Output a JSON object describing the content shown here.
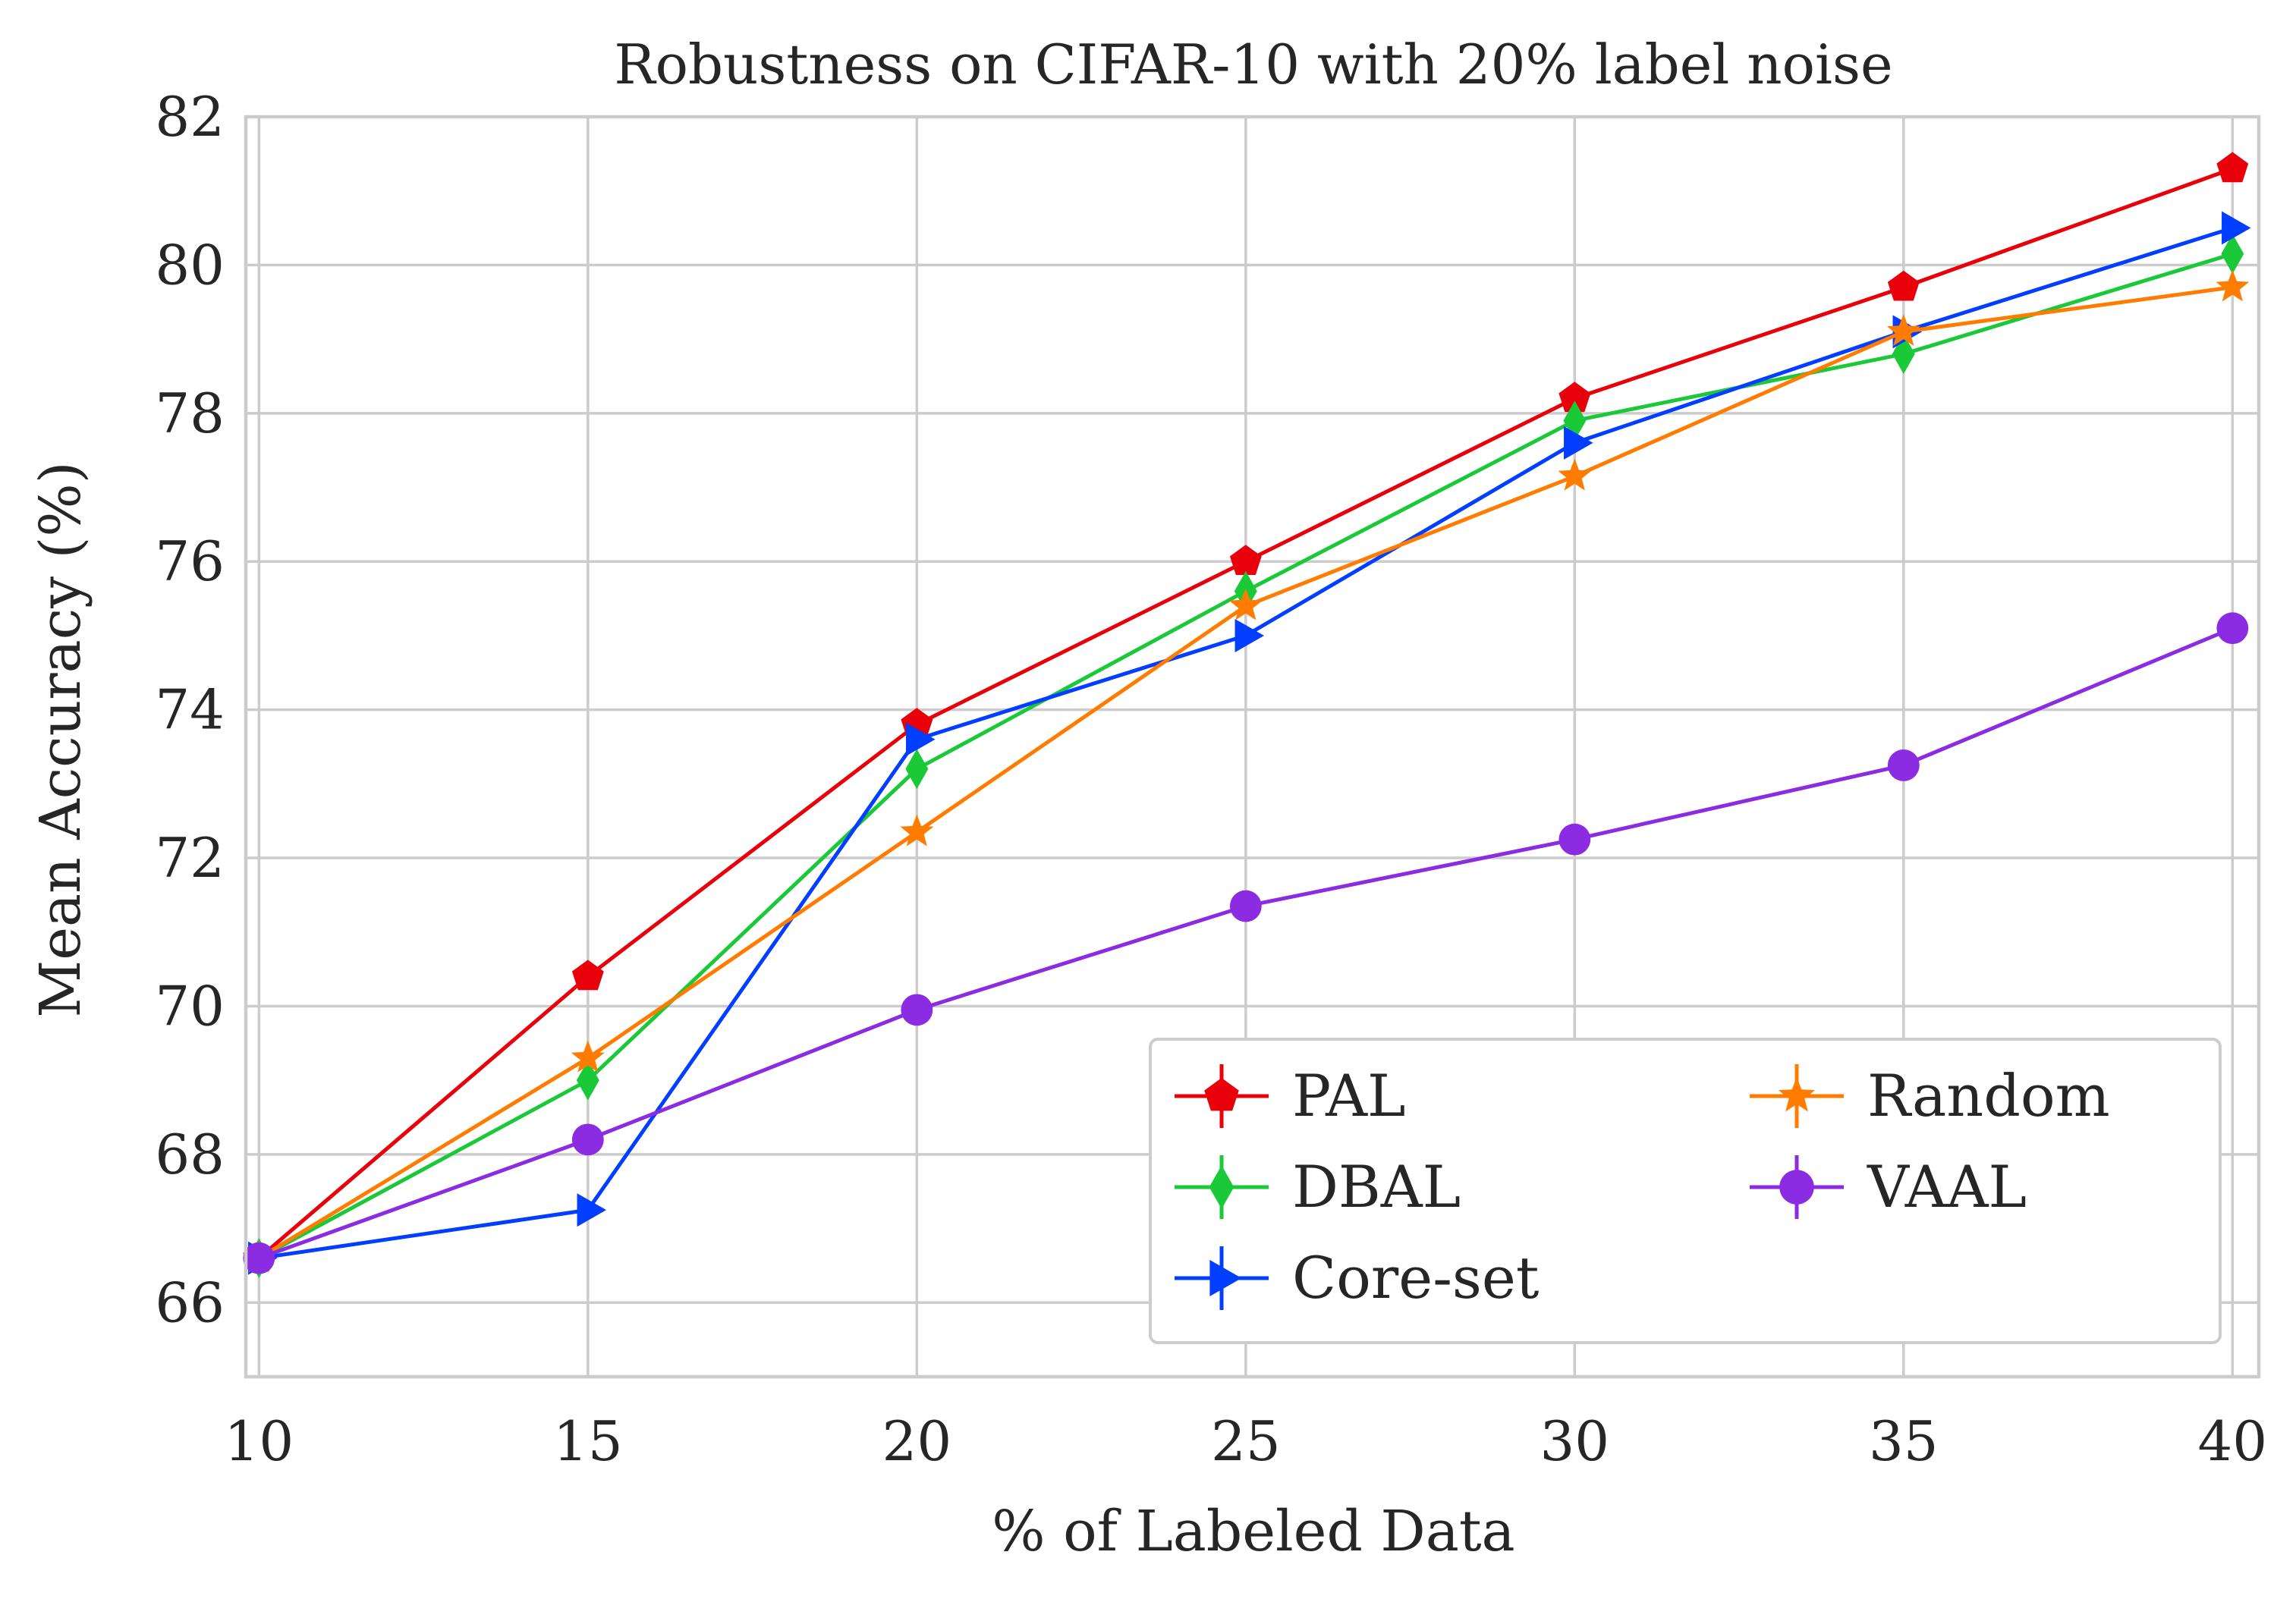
{
  "chart_data": {
    "type": "line",
    "title": "Robustness on CIFAR-10 with 20% label noise",
    "xlabel": "% of Labeled Data",
    "ylabel": "Mean Accuracy (%)",
    "xlim": [
      9.8,
      40.4
    ],
    "ylim": [
      65,
      82
    ],
    "x_ticks": [
      10,
      15,
      20,
      25,
      30,
      35,
      40
    ],
    "x_tick_labels": [
      "10",
      "15",
      "20",
      "25",
      "30",
      "35",
      "40"
    ],
    "y_ticks": [
      66,
      68,
      70,
      72,
      74,
      76,
      78,
      80,
      82
    ],
    "y_tick_labels": [
      "66",
      "68",
      "70",
      "72",
      "74",
      "76",
      "78",
      "80",
      "82"
    ],
    "grid": true,
    "legend_position": "bottom-right",
    "legend_columns": 2,
    "x": [
      10,
      15,
      20,
      25,
      30,
      35,
      40
    ],
    "series": [
      {
        "name": "PAL",
        "color": "#e8000b",
        "marker": "pentagon",
        "values": [
          66.6,
          70.4,
          73.8,
          76.0,
          78.2,
          79.7,
          81.3
        ]
      },
      {
        "name": "DBAL",
        "color": "#1ac938",
        "marker": "thin-diamond",
        "values": [
          66.6,
          69.0,
          73.2,
          75.6,
          77.9,
          78.8,
          80.15
        ]
      },
      {
        "name": "Core-set",
        "color": "#023eff",
        "marker": "triangle-right",
        "values": [
          66.6,
          67.25,
          73.6,
          75.0,
          77.6,
          79.1,
          80.5
        ]
      },
      {
        "name": "Random",
        "color": "#ff7c00",
        "marker": "star",
        "values": [
          66.6,
          69.3,
          72.35,
          75.4,
          77.15,
          79.1,
          79.7
        ]
      },
      {
        "name": "VAAL",
        "color": "#8b2be2",
        "marker": "circle",
        "values": [
          66.6,
          68.2,
          69.95,
          71.35,
          72.25,
          73.25,
          75.1
        ]
      }
    ]
  }
}
